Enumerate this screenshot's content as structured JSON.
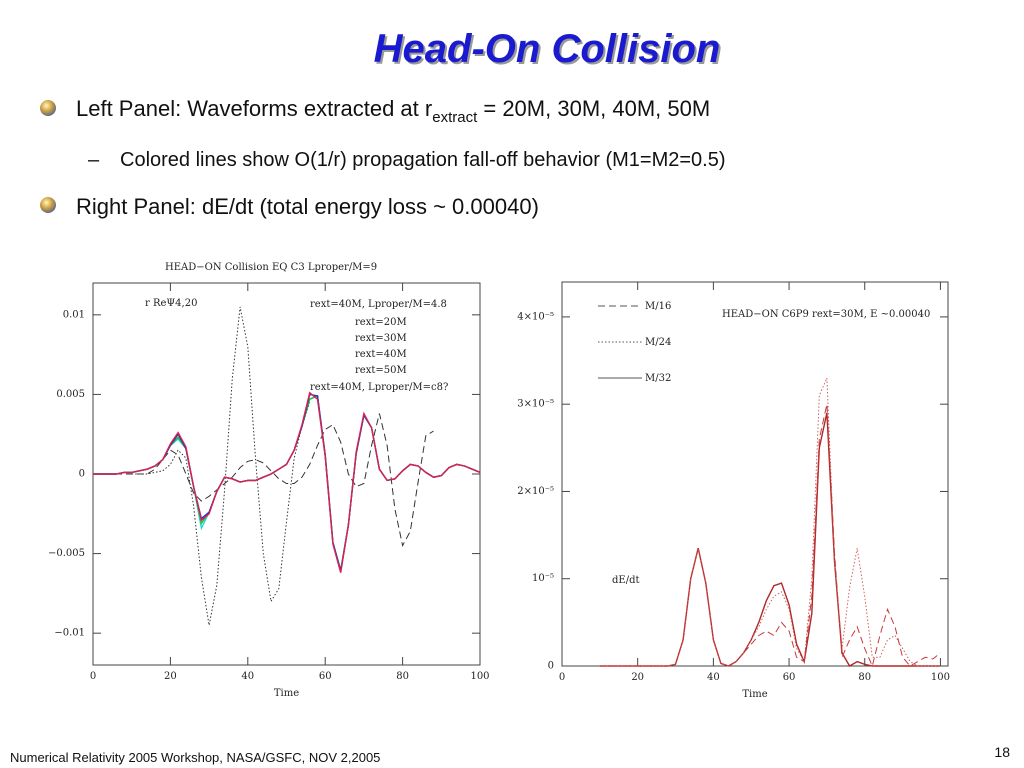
{
  "title": "Head-On Collision",
  "bullets": [
    {
      "parts": [
        "Left Panel: Waveforms extracted at r",
        "extract",
        " = 20M, 30M, 40M, 50M"
      ]
    },
    {
      "parts": [
        "Colored lines show O(1/r) propagation fall-off behavior (M1=M2=0.5)"
      ]
    },
    {
      "parts": [
        "Right Panel: dE/dt (total energy loss ~ 0.00040)"
      ]
    }
  ],
  "footer": "Numerical Relativity 2005 Workshop, NASA/GSFC, NOV 2,2005",
  "page_number": "18",
  "chart_data": [
    {
      "type": "line",
      "title": "HEAD−ON Collision EQ C3 Lproper/M=9",
      "annotation": "r ReΨ4,20",
      "x_label": "Time",
      "x": [
        0,
        2,
        4,
        6,
        8,
        10,
        12,
        14,
        16,
        18,
        20,
        22,
        24,
        26,
        28,
        30,
        32,
        34,
        36,
        38,
        40,
        42,
        44,
        46,
        48,
        50,
        52,
        54,
        56,
        58,
        60,
        62,
        64,
        66,
        68,
        70,
        72,
        74,
        76,
        78,
        80,
        82,
        84,
        86,
        88,
        90,
        92,
        94,
        96,
        98,
        100
      ],
      "xlim": [
        0,
        100
      ],
      "xticks": [
        0,
        20,
        40,
        60,
        80,
        100
      ],
      "ylim": [
        -0.012,
        0.012
      ],
      "yticks": [
        {
          "value": -0.01,
          "label": "−0.01"
        },
        {
          "value": -0.005,
          "label": "−0.005"
        },
        0,
        0.005,
        0.01
      ],
      "series": [
        {
          "name": "rext=20M",
          "color": "#e0204a",
          "dash": "solid",
          "values": [
            0,
            0,
            0,
            0,
            0.0001,
            0.0001,
            0.0002,
            0.0003,
            0.0005,
            0.0009,
            0.0019,
            0.0026,
            0.0017,
            -0.0008,
            -0.0029,
            -0.0025,
            -0.0011,
            -0.0002,
            -0.0003,
            -0.0005,
            -0.0004,
            -0.0004,
            -0.0002,
            0,
            0.0003,
            0.0006,
            0.0015,
            0.0031,
            0.0051,
            0.0047,
            0.0011,
            -0.0044,
            -0.0062,
            -0.0032,
            0.0014,
            0.0038,
            0.0029,
            0.0003,
            -0.0004,
            -0.0003,
            0.0002,
            0.0006,
            0.0005,
            0.0001,
            -0.0002,
            -0.0001,
            0.0004,
            0.0006,
            0.0005,
            0.0003,
            0.0001
          ]
        },
        {
          "name": "rext=30M",
          "color": "#2030d0",
          "dash": "solid",
          "values": [
            0,
            0,
            0,
            0,
            0.0001,
            0.0001,
            0.0002,
            0.0003,
            0.0005,
            0.0009,
            0.0018,
            0.0025,
            0.0016,
            -0.0008,
            -0.0028,
            -0.0024,
            -0.0011,
            -0.0002,
            -0.0003,
            -0.0005,
            -0.0004,
            -0.0004,
            -0.0002,
            0,
            0.0003,
            0.0006,
            0.0015,
            0.003,
            0.005,
            0.0049,
            0.0012,
            -0.0043,
            -0.0061,
            -0.0032,
            0.0013,
            0.0037,
            0.0029,
            0.0003,
            -0.0004,
            -0.0003,
            0.0002,
            0.0006,
            0.0005,
            0.0001,
            -0.0002,
            -0.0001,
            0.0004,
            0.0006,
            0.0005,
            0.0003,
            0.0001
          ]
        },
        {
          "name": "rext=40M",
          "color": "#20c040",
          "dash": "solid",
          "values": [
            0,
            0,
            0,
            0,
            0.0001,
            0.0001,
            0.0002,
            0.0003,
            0.0005,
            0.0009,
            0.0018,
            0.0023,
            0.0016,
            -0.0008,
            -0.0031,
            -0.0024,
            -0.0011,
            -0.0002,
            -0.0003,
            -0.0005,
            -0.0004,
            -0.0004,
            -0.0002,
            0,
            0.0003,
            0.0006,
            0.0015,
            0.003,
            0.0047,
            0.0049,
            0.0012,
            -0.0043,
            -0.0061,
            -0.0032,
            0.0013,
            0.0037,
            0.0029,
            0.0003,
            -0.0004,
            -0.0003,
            0.0002,
            0.0006,
            0.0005,
            0.0001,
            -0.0002,
            -0.0001,
            0.0004,
            0.0006,
            0.0005,
            0.0003,
            0.0001
          ]
        },
        {
          "name": "rext=50M",
          "color": "#20d8d8",
          "dash": "solid",
          "values": [
            0,
            0,
            0,
            0,
            0.0001,
            0.0001,
            0.0002,
            0.0003,
            0.0005,
            0.0009,
            0.0018,
            0.0022,
            0.0016,
            -0.0008,
            -0.0034,
            -0.0024,
            -0.0011,
            -0.0002,
            -0.0003,
            -0.0005,
            -0.0004,
            -0.0004,
            -0.0002,
            0,
            0.0003,
            0.0006,
            0.0015,
            0.003,
            0.0047,
            0.0049,
            0.0012,
            -0.0043,
            -0.006,
            -0.0032,
            0.0013,
            0.0037,
            0.0029,
            0.0003,
            -0.0004,
            -0.0003,
            0.0002,
            0.0006,
            0.0005,
            0.0001,
            -0.0002,
            -0.0001,
            0.0004,
            0.0006,
            0.0005,
            0.0003,
            0.0001
          ]
        },
        {
          "name": "rext=40M, Lproper/M=4.8",
          "color": "#333333",
          "dash": "dashed",
          "values": [
            0,
            0,
            0,
            0,
            0,
            0,
            0,
            0,
            0.0003,
            0.0009,
            0.0015,
            0.0012,
            0,
            -0.0012,
            -0.0017,
            -0.0014,
            -0.001,
            -0.0006,
            -0.0002,
            0.0004,
            0.0008,
            0.0009,
            0.0007,
            0.0002,
            -0.0003,
            -0.0006,
            -0.0006,
            -0.0002,
            0.0006,
            0.0018,
            0.0028,
            0.0031,
            0.002,
            0,
            -0.0008,
            -0.0006,
            0.0018,
            0.0038,
            0.0018,
            -0.0022,
            -0.0045,
            -0.0036,
            -0.0005,
            0.0024,
            0.0027,
            null,
            null,
            null,
            null,
            null,
            null
          ]
        },
        {
          "name": "rext=40M, Lproper/M=c8?",
          "color": "#333333",
          "dash": "dotted",
          "values": [
            null,
            null,
            null,
            null,
            null,
            0,
            0,
            0,
            0.0001,
            0.0002,
            0.0006,
            0.0015,
            0.001,
            -0.002,
            -0.0065,
            -0.0095,
            -0.007,
            -0.001,
            0.006,
            0.0105,
            0.008,
            0.001,
            -0.005,
            -0.008,
            -0.0072,
            -0.003,
            0.001,
            0.003,
            0.0045,
            null,
            null,
            null,
            null,
            null,
            null,
            null,
            null,
            null,
            null,
            null,
            null,
            null,
            null,
            null,
            null,
            null,
            null,
            null,
            null,
            null,
            null
          ]
        }
      ]
    },
    {
      "type": "line",
      "title": "HEAD−ON C6P9 rext=30M, E ~0.00040",
      "annotation": "dE/dt",
      "x_label": "Time",
      "x": [
        0,
        2,
        4,
        6,
        8,
        10,
        12,
        14,
        16,
        18,
        20,
        22,
        24,
        26,
        28,
        30,
        32,
        34,
        36,
        38,
        40,
        42,
        44,
        46,
        48,
        50,
        52,
        54,
        56,
        58,
        60,
        62,
        64,
        66,
        68,
        70,
        72,
        74,
        76,
        78,
        80,
        82,
        84,
        86,
        88,
        90,
        92,
        94,
        96,
        98,
        100
      ],
      "xlim": [
        0,
        102
      ],
      "xticks": [
        0,
        20,
        40,
        60,
        80,
        100
      ],
      "ylim": [
        0,
        4.4e-05
      ],
      "yticks": [
        0,
        {
          "value": 1e-05,
          "label": "10⁻⁵"
        },
        {
          "value": 2e-05,
          "label": "2×10⁻⁵"
        },
        {
          "value": 3e-05,
          "label": "3×10⁻⁵"
        },
        {
          "value": 4e-05,
          "label": "4×10⁻⁵"
        }
      ],
      "series": [
        {
          "name": "M/16",
          "color": "#c83838",
          "dash": "dashed",
          "values": [
            null,
            null,
            null,
            null,
            null,
            0,
            0,
            0,
            0,
            0,
            0,
            0,
            0,
            0,
            0,
            2e-07,
            3e-06,
            1e-05,
            1.35e-05,
            9.5e-06,
            3e-06,
            3e-07,
            0,
            5e-07,
            1.5e-06,
            2.5e-06,
            3.5e-06,
            4e-06,
            3.5e-06,
            5e-06,
            4e-06,
            1e-06,
            5e-07,
            8e-06,
            2.6e-05,
            3e-05,
            1.3e-05,
            1e-06,
            3e-06,
            4.5e-06,
            2e-06,
            0,
            3.5e-06,
            6.5e-06,
            4.5e-06,
            1e-06,
            0,
            5e-07,
            1e-06,
            8e-07,
            1.5e-06
          ]
        },
        {
          "name": "M/24",
          "color": "#d06060",
          "dash": "dotted",
          "values": [
            null,
            null,
            null,
            null,
            null,
            0,
            0,
            0,
            0,
            0,
            0,
            0,
            0,
            0,
            0,
            2e-07,
            3e-06,
            1e-05,
            1.35e-05,
            9.5e-06,
            3e-06,
            3e-07,
            0,
            5e-07,
            1.5e-06,
            3e-06,
            4.5e-06,
            6.5e-06,
            8e-06,
            8.5e-06,
            6.5e-06,
            2e-06,
            5e-07,
            1e-05,
            3.1e-05,
            3.3e-05,
            1.2e-05,
            2e-06,
            9e-06,
            1.35e-05,
            8e-06,
            1e-06,
            1e-06,
            3e-06,
            3.5e-06,
            2e-06,
            5e-07,
            0,
            0,
            0,
            0
          ]
        },
        {
          "name": "M/32",
          "color": "#b02828",
          "dash": "solid",
          "values": [
            null,
            null,
            null,
            null,
            null,
            0,
            0,
            0,
            0,
            0,
            0,
            0,
            0,
            0,
            0,
            2e-07,
            3e-06,
            1e-05,
            1.35e-05,
            9.5e-06,
            3e-06,
            3e-07,
            0,
            5e-07,
            1.5e-06,
            3e-06,
            5e-06,
            7.5e-06,
            9.2e-06,
            9.5e-06,
            7e-06,
            2.5e-06,
            5e-07,
            6e-06,
            2.5e-05,
            2.9e-05,
            1.2e-05,
            1.5e-06,
            0,
            5e-07,
            2e-07,
            0,
            0,
            0,
            0,
            0,
            0,
            0,
            0,
            0,
            0
          ]
        }
      ]
    }
  ]
}
